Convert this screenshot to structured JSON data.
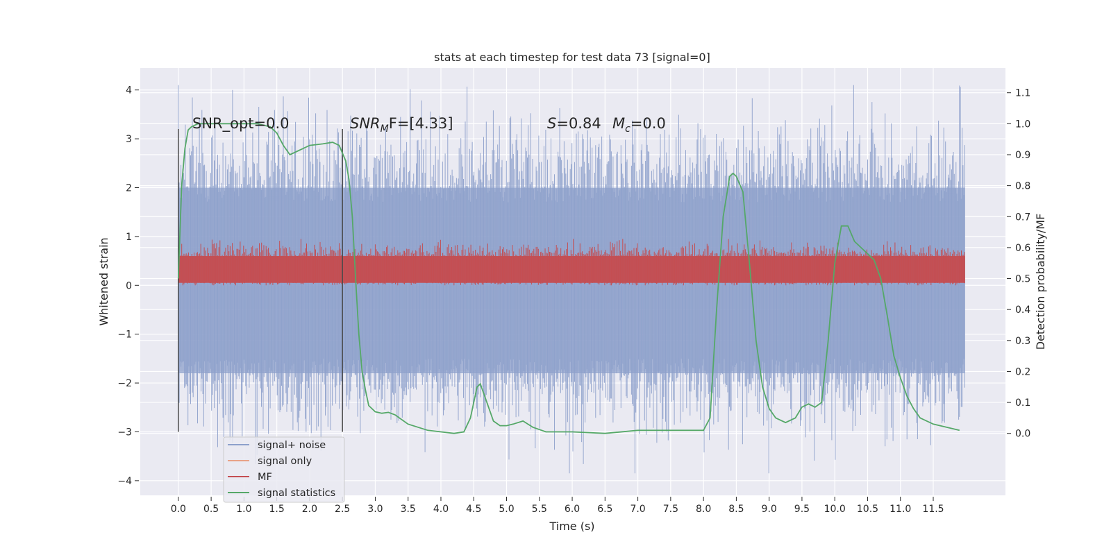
{
  "chart_data": {
    "type": "line",
    "title": "stats at each timestep for test data 73 [signal=0]",
    "xlabel": "Time (s)",
    "ylabel": "Whitened strain",
    "y2label": "Detection probability/MF",
    "xlim": [
      -0.58,
      12.6
    ],
    "ylim": [
      -4.3,
      4.45
    ],
    "y2lim": [
      -0.2,
      1.18
    ],
    "xticks": [
      0.0,
      0.5,
      1.0,
      1.5,
      2.0,
      2.5,
      3.0,
      3.5,
      4.0,
      4.5,
      5.0,
      5.5,
      6.0,
      6.5,
      7.0,
      7.5,
      8.0,
      8.5,
      9.0,
      9.5,
      10.0,
      10.5,
      11.0,
      11.5
    ],
    "xtick_labels": [
      "0.0",
      "0.5",
      "1.0",
      "1.5",
      "2.0",
      "2.5",
      "3.0",
      "3.5",
      "4.0",
      "4.5",
      "5.0",
      "5.5",
      "6.0",
      "6.5",
      "7.0",
      "7.5",
      "8.0",
      "8.5",
      "9.0",
      "9.5",
      "10.0",
      "10.5",
      "11.0",
      "11.5"
    ],
    "yticks": [
      -4,
      -3,
      -2,
      -1,
      0,
      1,
      2,
      3,
      4
    ],
    "ytick_labels": [
      "−4",
      "−3",
      "−2",
      "−1",
      "0",
      "1",
      "2",
      "3",
      "4"
    ],
    "y2ticks": [
      0.0,
      0.1,
      0.2,
      0.3,
      0.4,
      0.5,
      0.6,
      0.7,
      0.8,
      0.9,
      1.0,
      1.1
    ],
    "y2tick_labels": [
      "0.0",
      "0.1",
      "0.2",
      "0.3",
      "0.4",
      "0.5",
      "0.6",
      "0.7",
      "0.8",
      "0.9",
      "1.0",
      "1.1"
    ],
    "grid": true,
    "legend_placement": "lower-left",
    "series": [
      {
        "name": "signal+ noise",
        "color": "#8da0cb",
        "axis": "left",
        "kind": "noise",
        "x_range": [
          0.0,
          11.98
        ],
        "typical_range": [
          -1.8,
          2.0
        ],
        "observed_extremes": [
          -3.85,
          4.1
        ]
      },
      {
        "name": "signal only",
        "color": "#e8a287",
        "axis": "left",
        "kind": "line",
        "x": [],
        "y": []
      },
      {
        "name": "MF",
        "color": "#c44e52",
        "axis": "left",
        "kind": "noise",
        "x_range": [
          0.0,
          11.98
        ],
        "typical_range": [
          0.05,
          0.6
        ],
        "observed_extremes": [
          0.0,
          0.95
        ]
      },
      {
        "name": "signal statistics",
        "color": "#55a868",
        "axis": "right",
        "kind": "line",
        "x": [
          0.0,
          0.05,
          0.1,
          0.15,
          0.2,
          0.3,
          0.5,
          0.8,
          1.0,
          1.2,
          1.4,
          1.5,
          1.6,
          1.7,
          1.8,
          1.9,
          2.0,
          2.2,
          2.35,
          2.45,
          2.55,
          2.6,
          2.65,
          2.7,
          2.75,
          2.8,
          2.85,
          2.9,
          3.0,
          3.1,
          3.2,
          3.3,
          3.5,
          3.8,
          4.0,
          4.2,
          4.35,
          4.45,
          4.55,
          4.6,
          4.7,
          4.8,
          4.9,
          5.0,
          5.1,
          5.25,
          5.4,
          5.6,
          6.0,
          6.5,
          7.0,
          7.3,
          7.6,
          8.0,
          8.1,
          8.2,
          8.3,
          8.4,
          8.45,
          8.5,
          8.6,
          8.7,
          8.8,
          8.9,
          9.0,
          9.1,
          9.25,
          9.4,
          9.5,
          9.6,
          9.7,
          9.8,
          9.9,
          10.0,
          10.1,
          10.2,
          10.3,
          10.4,
          10.5,
          10.6,
          10.7,
          10.8,
          10.9,
          11.0,
          11.1,
          11.2,
          11.3,
          11.5,
          11.7,
          11.9
        ],
        "y": [
          0.5,
          0.8,
          0.92,
          0.98,
          0.99,
          1.0,
          1.0,
          1.0,
          1.0,
          1.0,
          0.99,
          0.97,
          0.93,
          0.9,
          0.91,
          0.92,
          0.93,
          0.935,
          0.94,
          0.93,
          0.88,
          0.82,
          0.7,
          0.5,
          0.32,
          0.2,
          0.14,
          0.09,
          0.07,
          0.065,
          0.068,
          0.06,
          0.03,
          0.01,
          0.005,
          0.0,
          0.005,
          0.05,
          0.15,
          0.16,
          0.1,
          0.04,
          0.025,
          0.025,
          0.03,
          0.04,
          0.02,
          0.005,
          0.005,
          0.0,
          0.01,
          0.01,
          0.01,
          0.01,
          0.05,
          0.4,
          0.7,
          0.83,
          0.84,
          0.83,
          0.78,
          0.55,
          0.3,
          0.15,
          0.08,
          0.05,
          0.035,
          0.05,
          0.085,
          0.095,
          0.085,
          0.1,
          0.3,
          0.55,
          0.67,
          0.67,
          0.62,
          0.6,
          0.58,
          0.56,
          0.5,
          0.38,
          0.25,
          0.18,
          0.12,
          0.08,
          0.05,
          0.03,
          0.02,
          0.01
        ]
      }
    ],
    "vertical_markers": [
      {
        "x": 0.0,
        "y_top": 3.2,
        "y_bottom": -3.0
      },
      {
        "x": 2.5,
        "y_top": 3.2,
        "y_bottom": -3.0
      }
    ],
    "annotations": {
      "snr_opt": "SNR_opt=0.0",
      "snr_mf_var": "SNR",
      "snr_mf_sub": "M",
      "snr_mf_rest": "F=[4.33]",
      "s_var": "S",
      "s_rest": "=0.84",
      "mc_var": "M",
      "mc_sub": "c",
      "mc_rest": "=0.0"
    }
  }
}
